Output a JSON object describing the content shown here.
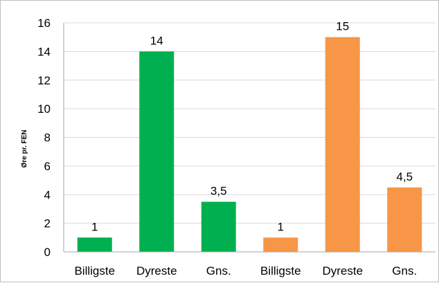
{
  "chart_data": {
    "type": "bar",
    "ylabel": "Øre pr. FEN",
    "ylim": [
      0,
      16
    ],
    "yticks": [
      0,
      2,
      4,
      6,
      8,
      10,
      12,
      14,
      16
    ],
    "grid": true,
    "legend": "none",
    "categories": [
      "Billigste",
      "Dyreste",
      "Gns.",
      "Billigste",
      "Dyreste",
      "Gns."
    ],
    "values": [
      1,
      14,
      3.5,
      1,
      15,
      4.5
    ],
    "data_labels": [
      "1",
      "14",
      "3,5",
      "1",
      "15",
      "4,5"
    ],
    "bar_colors": [
      "#00b050",
      "#00b050",
      "#00b050",
      "#f79646",
      "#f79646",
      "#f79646"
    ]
  }
}
